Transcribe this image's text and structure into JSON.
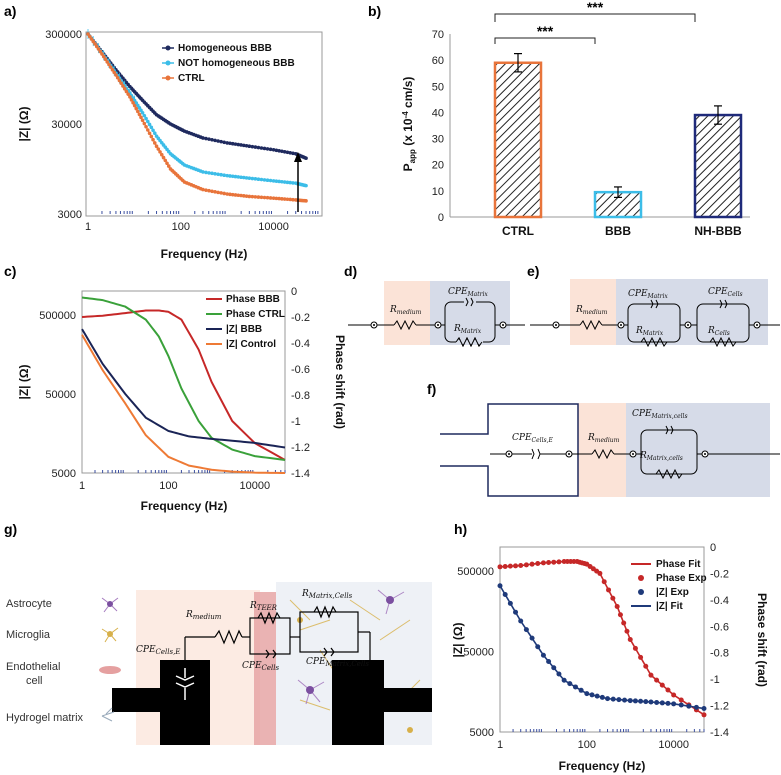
{
  "panels": {
    "a": "a)",
    "b": "b)",
    "c": "c)",
    "d": "d)",
    "e": "e)",
    "f": "f)",
    "g": "g)",
    "h": "h)"
  },
  "colors": {
    "hom": "#1f2a5e",
    "nothom": "#3cbde8",
    "ctrl": "#e8743b",
    "phaseBBB": "#c62828",
    "phaseCTRL": "#3aa13a",
    "zBBB": "#1a2456",
    "zCtrl": "#ee7a35",
    "fitPhase": "#c62828",
    "fitZ": "#1f3a7a",
    "medium": "#fbe3d7",
    "matrix": "#d6dbe8",
    "bar_ctrl": "#e8743b",
    "bar_bbb": "#3cbde8",
    "bar_nh": "#1f2a7a"
  },
  "chart_data": [
    {
      "id": "a",
      "type": "line",
      "xlabel": "Frequency (Hz)",
      "ylabel": "|Z| (Ω)",
      "xscale": "log",
      "yscale": "log",
      "xlim": [
        1,
        100000
      ],
      "ylim": [
        3000,
        300000
      ],
      "xticks": [
        "1",
        "100",
        "10000"
      ],
      "yticks": [
        "3000",
        "30000",
        "300000"
      ],
      "legend_position": "top-right",
      "series": [
        {
          "name": "Homogeneous BBB",
          "x": [
            1,
            2,
            4,
            8,
            15,
            30,
            60,
            120,
            300,
            1000,
            3000,
            10000,
            30000,
            50000
          ],
          "y": [
            300000,
            190000,
            120000,
            78000,
            55000,
            38000,
            30000,
            25000,
            21000,
            18500,
            17000,
            15500,
            14000,
            12500
          ]
        },
        {
          "name": "NOT homogeneous BBB",
          "x": [
            1,
            2,
            4,
            8,
            15,
            30,
            60,
            120,
            300,
            1000,
            3000,
            10000,
            30000,
            50000
          ],
          "y": [
            300000,
            185000,
            110000,
            66000,
            40000,
            22000,
            14000,
            10500,
            8800,
            8000,
            7500,
            7000,
            6600,
            6200
          ]
        },
        {
          "name": "CTRL",
          "x": [
            1,
            2,
            4,
            8,
            15,
            30,
            60,
            120,
            300,
            1000,
            3000,
            10000,
            30000,
            50000
          ],
          "y": [
            300000,
            180000,
            105000,
            60000,
            33000,
            17000,
            9500,
            6800,
            5600,
            5000,
            4700,
            4500,
            4300,
            4200
          ]
        }
      ]
    },
    {
      "id": "b",
      "type": "bar",
      "ylabel": "Papp (x 10-4 cm/s)",
      "ylim": [
        0,
        70
      ],
      "yticks": [
        "0",
        "10",
        "20",
        "30",
        "40",
        "50",
        "60",
        "70"
      ],
      "categories": [
        "CTRL",
        "BBB",
        "NH-BBB"
      ],
      "values": [
        59,
        9.5,
        39
      ],
      "errors": [
        3.5,
        2,
        3.5
      ],
      "significance": [
        "***",
        "***"
      ]
    },
    {
      "id": "c",
      "type": "line",
      "xlabel": "Frequency (Hz)",
      "ylabel": "|Z| (Ω)",
      "y2label": "Phase shift (rad)",
      "xscale": "log",
      "yscale": "log",
      "xlim": [
        1,
        50000
      ],
      "ylim": [
        5000,
        1000000
      ],
      "y2lim": [
        -1.4,
        0
      ],
      "xticks": [
        "1",
        "100",
        "10000"
      ],
      "yticks": [
        "5000",
        "50000",
        "500000"
      ],
      "y2ticks": [
        "0",
        "-0.2",
        "-0.4",
        "-0.6",
        "-0.8",
        "-1",
        "-1.2",
        "-1.4"
      ],
      "legend_position": "top-right",
      "series": [
        {
          "name": "Phase BBB",
          "axis": "right",
          "x": [
            1,
            3,
            10,
            30,
            60,
            100,
            200,
            500,
            1000,
            3000,
            10000,
            50000
          ],
          "y": [
            -0.2,
            -0.19,
            -0.17,
            -0.15,
            -0.15,
            -0.16,
            -0.22,
            -0.45,
            -0.7,
            -1.0,
            -1.17,
            -1.3
          ]
        },
        {
          "name": "Phase CTRL",
          "axis": "right",
          "x": [
            1,
            3,
            10,
            30,
            60,
            100,
            200,
            500,
            1000,
            3000,
            10000,
            50000
          ],
          "y": [
            -0.05,
            -0.07,
            -0.12,
            -0.22,
            -0.35,
            -0.5,
            -0.75,
            -1.0,
            -1.13,
            -1.22,
            -1.27,
            -1.3
          ]
        },
        {
          "name": "|Z| BBB",
          "axis": "left",
          "x": [
            1,
            3,
            10,
            30,
            100,
            300,
            1000,
            3000,
            10000,
            50000
          ],
          "y": [
            330000,
            120000,
            50000,
            25000,
            17000,
            14500,
            13500,
            12800,
            12000,
            10500
          ]
        },
        {
          "name": "|Z| Control",
          "axis": "left",
          "x": [
            1,
            3,
            10,
            30,
            100,
            300,
            1000,
            3000,
            10000,
            50000
          ],
          "y": [
            280000,
            100000,
            38000,
            15000,
            8000,
            6200,
            5500,
            5200,
            5050,
            5000
          ]
        }
      ]
    },
    {
      "id": "h",
      "type": "line",
      "xlabel": "Frequency (Hz)",
      "ylabel": "|Z| (Ω)",
      "y2label": "Phase shift (rad)",
      "xscale": "log",
      "yscale": "log",
      "xlim": [
        1,
        50000
      ],
      "ylim": [
        5000,
        1000000
      ],
      "y2lim": [
        -1.4,
        0
      ],
      "xticks": [
        "1",
        "100",
        "10000"
      ],
      "yticks": [
        "5000",
        "50000",
        "500000"
      ],
      "y2ticks": [
        "0",
        "-0.2",
        "-0.4",
        "-0.6",
        "-0.8",
        "-1",
        "-1.2",
        "-1.4"
      ],
      "legend_position": "top-right",
      "series": [
        {
          "name": "Phase Fit",
          "axis": "right",
          "x": [
            1,
            3,
            10,
            30,
            60,
            100,
            200,
            500,
            1000,
            3000,
            10000,
            50000
          ],
          "y": [
            -0.15,
            -0.14,
            -0.12,
            -0.11,
            -0.11,
            -0.13,
            -0.2,
            -0.45,
            -0.7,
            -0.97,
            -1.12,
            -1.27
          ]
        },
        {
          "name": "Phase Exp",
          "axis": "right",
          "x": [
            1,
            3,
            10,
            30,
            60,
            100,
            200,
            500,
            1000,
            3000,
            10000,
            50000
          ],
          "y": [
            -0.15,
            -0.14,
            -0.12,
            -0.11,
            -0.11,
            -0.13,
            -0.2,
            -0.45,
            -0.7,
            -0.97,
            -1.12,
            -1.27
          ]
        },
        {
          "name": "|Z| Exp",
          "axis": "left",
          "x": [
            1,
            3,
            10,
            30,
            100,
            300,
            1000,
            3000,
            10000,
            50000
          ],
          "y": [
            330000,
            120000,
            45000,
            22000,
            15000,
            13000,
            12300,
            11800,
            11200,
            9800
          ]
        },
        {
          "name": "|Z| Fit",
          "axis": "left",
          "x": [
            1,
            3,
            10,
            30,
            100,
            300,
            1000,
            3000,
            10000,
            50000
          ],
          "y": [
            330000,
            120000,
            45000,
            22000,
            15000,
            13000,
            12300,
            11800,
            11200,
            9800
          ]
        }
      ]
    }
  ],
  "circuits": {
    "r_medium": "Rmedium",
    "cpe_matrix": "CPEMatrix",
    "r_matrix": "RMatrix",
    "cpe_cells": "CPECells",
    "r_cells": "RCells",
    "cpe_cells_e": "CPECells,E",
    "cpe_matrix_cells": "CPEMatrix,cells",
    "r_matrix_cells": "RMatrix,cells",
    "r_teer": "RTEER",
    "cpe_matrix_cells_g": "CPEMatrix,Cells",
    "r_matrix_cells_g": "RMatrix,Cells",
    "cpe_cells_g": "CPECells"
  },
  "cells": [
    "Astrocyte",
    "Microglia",
    "Endothelial cell",
    "Hydrogel matrix"
  ]
}
